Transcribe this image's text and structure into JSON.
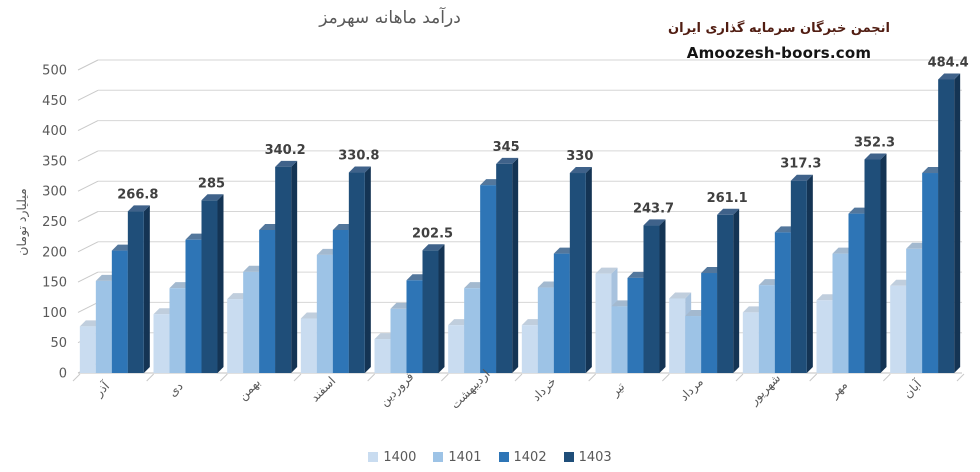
{
  "title": "درآمد ماهانه سهرمز",
  "watermark": {
    "line1": "انجمن خبرگان سرمایه گذاری ایران",
    "line2": "Amoozesh-boors.com"
  },
  "chart_data": {
    "type": "bar",
    "style": "3d-clustered-column",
    "title": "درآمد ماهانه سهرمز",
    "xlabel": "",
    "ylabel": "میلیارد تومان",
    "ylim": [
      0,
      500
    ],
    "ytick_step": 50,
    "yticks": [
      0,
      50,
      100,
      150,
      200,
      250,
      300,
      350,
      400,
      450,
      500
    ],
    "grid": true,
    "legend_position": "bottom",
    "categories": [
      "آذر",
      "دی",
      "بهمن",
      "اسفند",
      "فروردین",
      "اردیبهشت",
      "خرداد",
      "تیر",
      "مرداد",
      "شهریور",
      "مهر",
      "آبان"
    ],
    "series": [
      {
        "name": "1400",
        "color": "#c9dcf0",
        "side_color": "#a7c2de",
        "top_color": "#c0cedd",
        "values": [
          77,
          97,
          122,
          90,
          56,
          79,
          79,
          164,
          123,
          100,
          120,
          144
        ],
        "data_labels": false
      },
      {
        "name": "1401",
        "color": "#9dc3e6",
        "side_color": "#7da6cd",
        "top_color": "#a3b9cf",
        "values": [
          152,
          140,
          167,
          195,
          106,
          140,
          141,
          110,
          94,
          145,
          197,
          205
        ],
        "data_labels": false
      },
      {
        "name": "1402",
        "color": "#2e75b6",
        "side_color": "#1f578b",
        "top_color": "#53779c",
        "values": [
          202,
          220,
          236,
          236,
          153,
          310,
          197,
          157,
          165,
          232,
          263,
          330
        ],
        "data_labels": false
      },
      {
        "name": "1403",
        "color": "#1f4e79",
        "side_color": "#143454",
        "top_color": "#3f628a",
        "values": [
          266.8,
          285,
          340.2,
          330.8,
          202.5,
          345,
          330,
          243.7,
          261.1,
          317.3,
          352.3,
          484.4
        ],
        "data_labels": true
      }
    ],
    "colors": {
      "axis_text": "#595959",
      "data_label": "#404040",
      "gridline": "#d6d6d6",
      "axis_line": "#c2c2c2",
      "tick": "#c9c9c9"
    }
  }
}
